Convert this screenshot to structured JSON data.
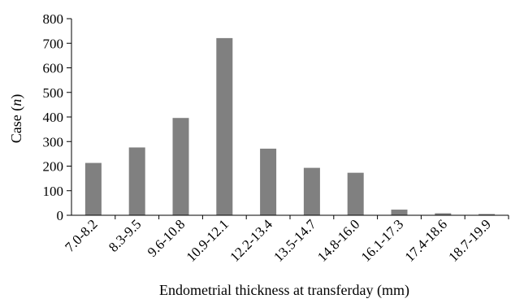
{
  "chart_data": {
    "type": "bar",
    "xlabel": "Endometrial thickness at transferday (mm)",
    "ylabel_prefix": "Case (",
    "ylabel_italic": "n",
    "ylabel_suffix": ")",
    "categories": [
      "7.0-8.2",
      "8.3-9.5",
      "9.6-10.8",
      "10.9-12.1",
      "12.2-13.4",
      "13.5-14.7",
      "14.8-16.0",
      "16.1-17.3",
      "17.4-18.6",
      "18.7-19.9"
    ],
    "values": [
      213,
      276,
      396,
      721,
      271,
      193,
      173,
      23,
      8,
      5
    ],
    "ylim": [
      0,
      800
    ],
    "yticks": [
      0,
      100,
      200,
      300,
      400,
      500,
      600,
      700,
      800
    ],
    "grid": false,
    "bar_color": "#808080"
  }
}
